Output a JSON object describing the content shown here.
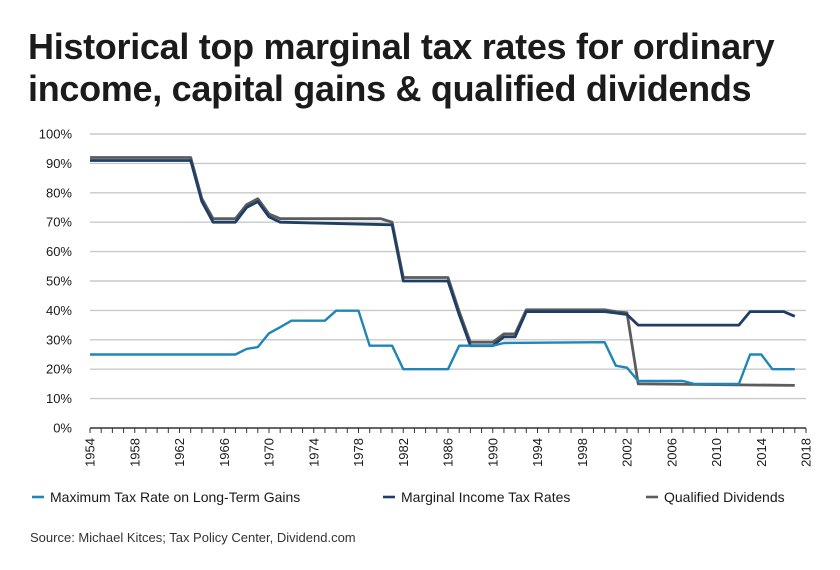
{
  "title_line1": "Historical top marginal tax rates for ordinary",
  "title_line2": "income, capital gains & qualified dividends",
  "source": "Source: Michael Kitces; Tax Policy Center, Dividend.com",
  "chart_data": {
    "type": "line",
    "title": "Historical top marginal tax rates for ordinary income, capital gains & qualified dividends",
    "xlabel": "",
    "ylabel": "",
    "xlim": [
      1954,
      2018
    ],
    "ylim": [
      0,
      100
    ],
    "x_ticks": [
      "1954",
      "1958",
      "1962",
      "1966",
      "1970",
      "1974",
      "1978",
      "1982",
      "1986",
      "1990",
      "1994",
      "1998",
      "2002",
      "2006",
      "2010",
      "2014",
      "2018"
    ],
    "y_ticks": [
      "0%",
      "10%",
      "20%",
      "30%",
      "40%",
      "50%",
      "60%",
      "70%",
      "80%",
      "90%",
      "100%"
    ],
    "grid": "horizontal",
    "legend_position": "bottom",
    "series": [
      {
        "name": "Maximum Tax Rate on Long-Term Gains",
        "color": "#1f86b7",
        "points": [
          [
            1954,
            25
          ],
          [
            1967,
            25
          ],
          [
            1968,
            26.9
          ],
          [
            1969,
            27.5
          ],
          [
            1970,
            32.2
          ],
          [
            1971,
            34.3
          ],
          [
            1972,
            36.5
          ],
          [
            1975,
            36.5
          ],
          [
            1976,
            39.9
          ],
          [
            1978,
            39.9
          ],
          [
            1979,
            28
          ],
          [
            1981,
            28
          ],
          [
            1982,
            20
          ],
          [
            1986,
            20
          ],
          [
            1987,
            28
          ],
          [
            1990,
            28
          ],
          [
            1991,
            28.9
          ],
          [
            2000,
            29.2
          ],
          [
            2001,
            21.2
          ],
          [
            2002,
            20.5
          ],
          [
            2003,
            16
          ],
          [
            2007,
            16
          ],
          [
            2008,
            15
          ],
          [
            2012,
            15
          ],
          [
            2013,
            25
          ],
          [
            2014,
            25
          ],
          [
            2015,
            20
          ],
          [
            2017,
            20
          ]
        ]
      },
      {
        "name": "Marginal Income Tax Rates",
        "color": "#1d3f66",
        "points": [
          [
            1954,
            91
          ],
          [
            1963,
            91
          ],
          [
            1964,
            77
          ],
          [
            1965,
            70
          ],
          [
            1967,
            70
          ],
          [
            1968,
            75
          ],
          [
            1969,
            77
          ],
          [
            1970,
            71.8
          ],
          [
            1971,
            70
          ],
          [
            1981,
            69.1
          ],
          [
            1982,
            50
          ],
          [
            1986,
            50
          ],
          [
            1987,
            38.5
          ],
          [
            1988,
            28
          ],
          [
            1990,
            28
          ],
          [
            1991,
            31
          ],
          [
            1992,
            31
          ],
          [
            1993,
            39.6
          ],
          [
            2000,
            39.6
          ],
          [
            2001,
            39.1
          ],
          [
            2002,
            38.6
          ],
          [
            2003,
            35
          ],
          [
            2012,
            35
          ],
          [
            2013,
            39.6
          ],
          [
            2016,
            39.6
          ],
          [
            2017,
            38
          ]
        ]
      },
      {
        "name": "Qualified Dividends",
        "color": "#5c5c5c",
        "points": [
          [
            1954,
            92
          ],
          [
            1963,
            92
          ],
          [
            1964,
            78
          ],
          [
            1965,
            71.2
          ],
          [
            1967,
            71.2
          ],
          [
            1968,
            76
          ],
          [
            1969,
            78
          ],
          [
            1970,
            72.8
          ],
          [
            1971,
            71.2
          ],
          [
            1980,
            71.2
          ],
          [
            1981,
            70
          ],
          [
            1982,
            51.2
          ],
          [
            1986,
            51.2
          ],
          [
            1987,
            39.6
          ],
          [
            1988,
            29.2
          ],
          [
            1990,
            29.2
          ],
          [
            1991,
            32
          ],
          [
            1992,
            32
          ],
          [
            1993,
            40.2
          ],
          [
            2000,
            40.2
          ],
          [
            2001,
            39.6
          ],
          [
            2002,
            39.2
          ],
          [
            2003,
            15
          ],
          [
            2017,
            14.5
          ]
        ]
      }
    ]
  }
}
